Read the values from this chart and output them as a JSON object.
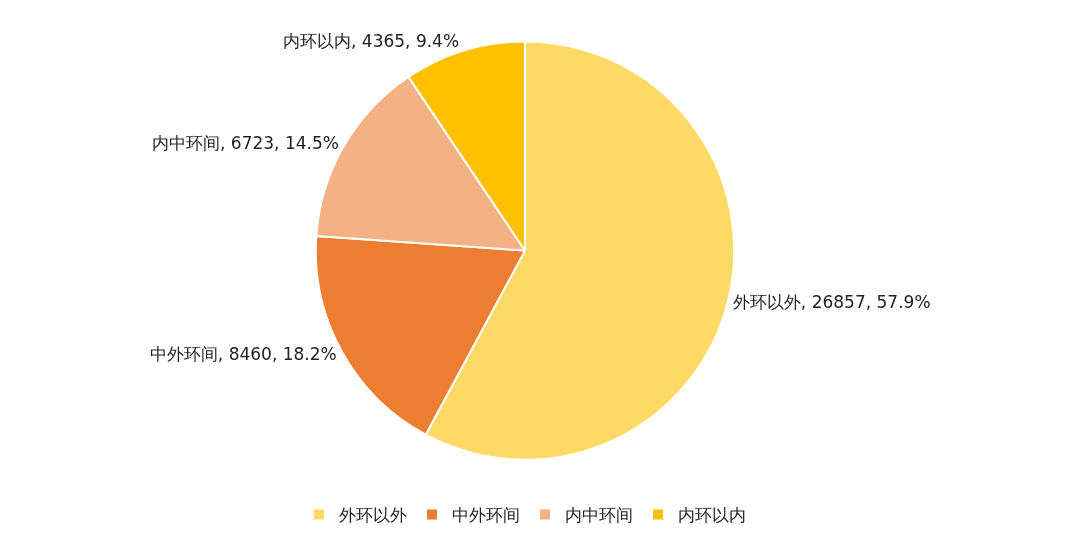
{
  "chart_data": {
    "type": "pie",
    "categories": [
      "外环以外",
      "中外环间",
      "内中环间",
      "内环以内"
    ],
    "values": [
      26857,
      8460,
      6723,
      4365
    ],
    "colors": [
      "#ffd966",
      "#ed7d31",
      "#f4b183",
      "#ffc000"
    ],
    "value_labels": [
      "外环以外, 26857, 57.9%",
      "中外环间, 8460, 18.2%",
      "内中环间, 6723, 14.5%",
      "内环以内, 4365, 9.4%"
    ],
    "legend": "bottom"
  }
}
